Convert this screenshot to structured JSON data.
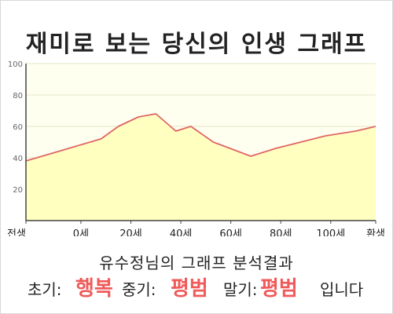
{
  "title": "재미로 보는 당신의 인생 그래프",
  "chart_data": {
    "type": "area",
    "x": [
      0,
      15,
      30,
      37,
      45,
      52,
      60,
      66,
      75,
      90,
      100,
      110,
      120,
      132,
      140
    ],
    "y": [
      38,
      45,
      52,
      60,
      66,
      68,
      57,
      60,
      50,
      41,
      46,
      50,
      54,
      57,
      60
    ],
    "xlim": [
      0,
      140
    ],
    "ylim": [
      0,
      100
    ],
    "y_ticks": [
      20,
      40,
      60,
      80,
      100
    ],
    "x_tick_labels": [
      {
        "x": 0,
        "label": "전생"
      },
      {
        "x": 22,
        "label": "0세"
      },
      {
        "x": 42,
        "label": "20세"
      },
      {
        "x": 62,
        "label": "40세"
      },
      {
        "x": 82,
        "label": "60세"
      },
      {
        "x": 102,
        "label": "80세"
      },
      {
        "x": 122,
        "label": "100세"
      },
      {
        "x": 140,
        "label": "환생"
      }
    ],
    "grid": true,
    "fill_color": "#ffffc0",
    "line_color": "#e06666",
    "background_color": "#fffff0",
    "grid_color": "#e6e6c8"
  },
  "result": {
    "heading": "유수정님의 그래프 분석결과",
    "early_label": "초기:",
    "early_value": "행복",
    "middle_label": "중기:",
    "middle_value": "평범",
    "late_label": "말기:",
    "late_value": "평범",
    "suffix": "입니다"
  }
}
